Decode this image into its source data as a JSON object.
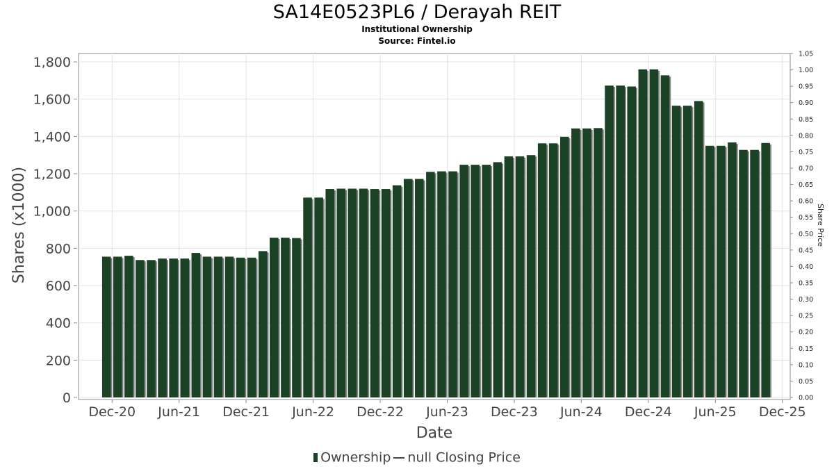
{
  "header": {
    "title": "SA14E0523PL6 / Derayah REIT",
    "subtitle1": "Institutional Ownership",
    "subtitle2": "Source: Fintel.io"
  },
  "legend": {
    "ownership": "Ownership",
    "price": "null Closing Price"
  },
  "colors": {
    "bar": "#1c4226",
    "bar_shadow": "#808080",
    "grid": "#e2e2e2"
  },
  "chart_data": {
    "type": "bar",
    "xlabel": "Date",
    "ylabel": "Shares (x1000)",
    "y2label": "Share Price",
    "ylim": [
      0,
      1845
    ],
    "y2lim": [
      0,
      1.05
    ],
    "grid": true,
    "legend_position": "bottom",
    "yticks": [
      "0",
      "200",
      "400",
      "600",
      "800",
      "1,000",
      "1,200",
      "1,400",
      "1,600",
      "1,800"
    ],
    "y2ticks": [
      "0.00",
      "0.05",
      "0.10",
      "0.15",
      "0.20",
      "0.25",
      "0.30",
      "0.35",
      "0.40",
      "0.45",
      "0.50",
      "0.55",
      "0.60",
      "0.65",
      "0.70",
      "0.75",
      "0.80",
      "0.85",
      "0.90",
      "0.95",
      "1.00",
      "1.05"
    ],
    "xticks": [
      "Dec-20",
      "Jun-21",
      "Dec-21",
      "Jun-22",
      "Dec-22",
      "Jun-23",
      "Dec-23",
      "Jun-24",
      "Dec-24",
      "Jun-25",
      "Dec-25"
    ],
    "xtick_positions": [
      0.5,
      6.5,
      12.5,
      18.5,
      24.5,
      30.5,
      36.5,
      42.5,
      48.5,
      54.5,
      60.5
    ],
    "x_domain": [
      -2.5,
      61.2
    ],
    "series": [
      {
        "name": "Ownership",
        "values": [
          755,
          755,
          760,
          737,
          737,
          745,
          745,
          745,
          775,
          755,
          755,
          755,
          750,
          750,
          785,
          857,
          857,
          855,
          1072,
          1072,
          1118,
          1120,
          1120,
          1120,
          1118,
          1118,
          1138,
          1172,
          1172,
          1210,
          1213,
          1213,
          1248,
          1248,
          1248,
          1262,
          1293,
          1293,
          1300,
          1363,
          1363,
          1398,
          1443,
          1443,
          1445,
          1673,
          1673,
          1668,
          1760,
          1760,
          1728,
          1565,
          1565,
          1590,
          1350,
          1350,
          1368,
          1328,
          1328,
          1365
        ]
      }
    ]
  }
}
